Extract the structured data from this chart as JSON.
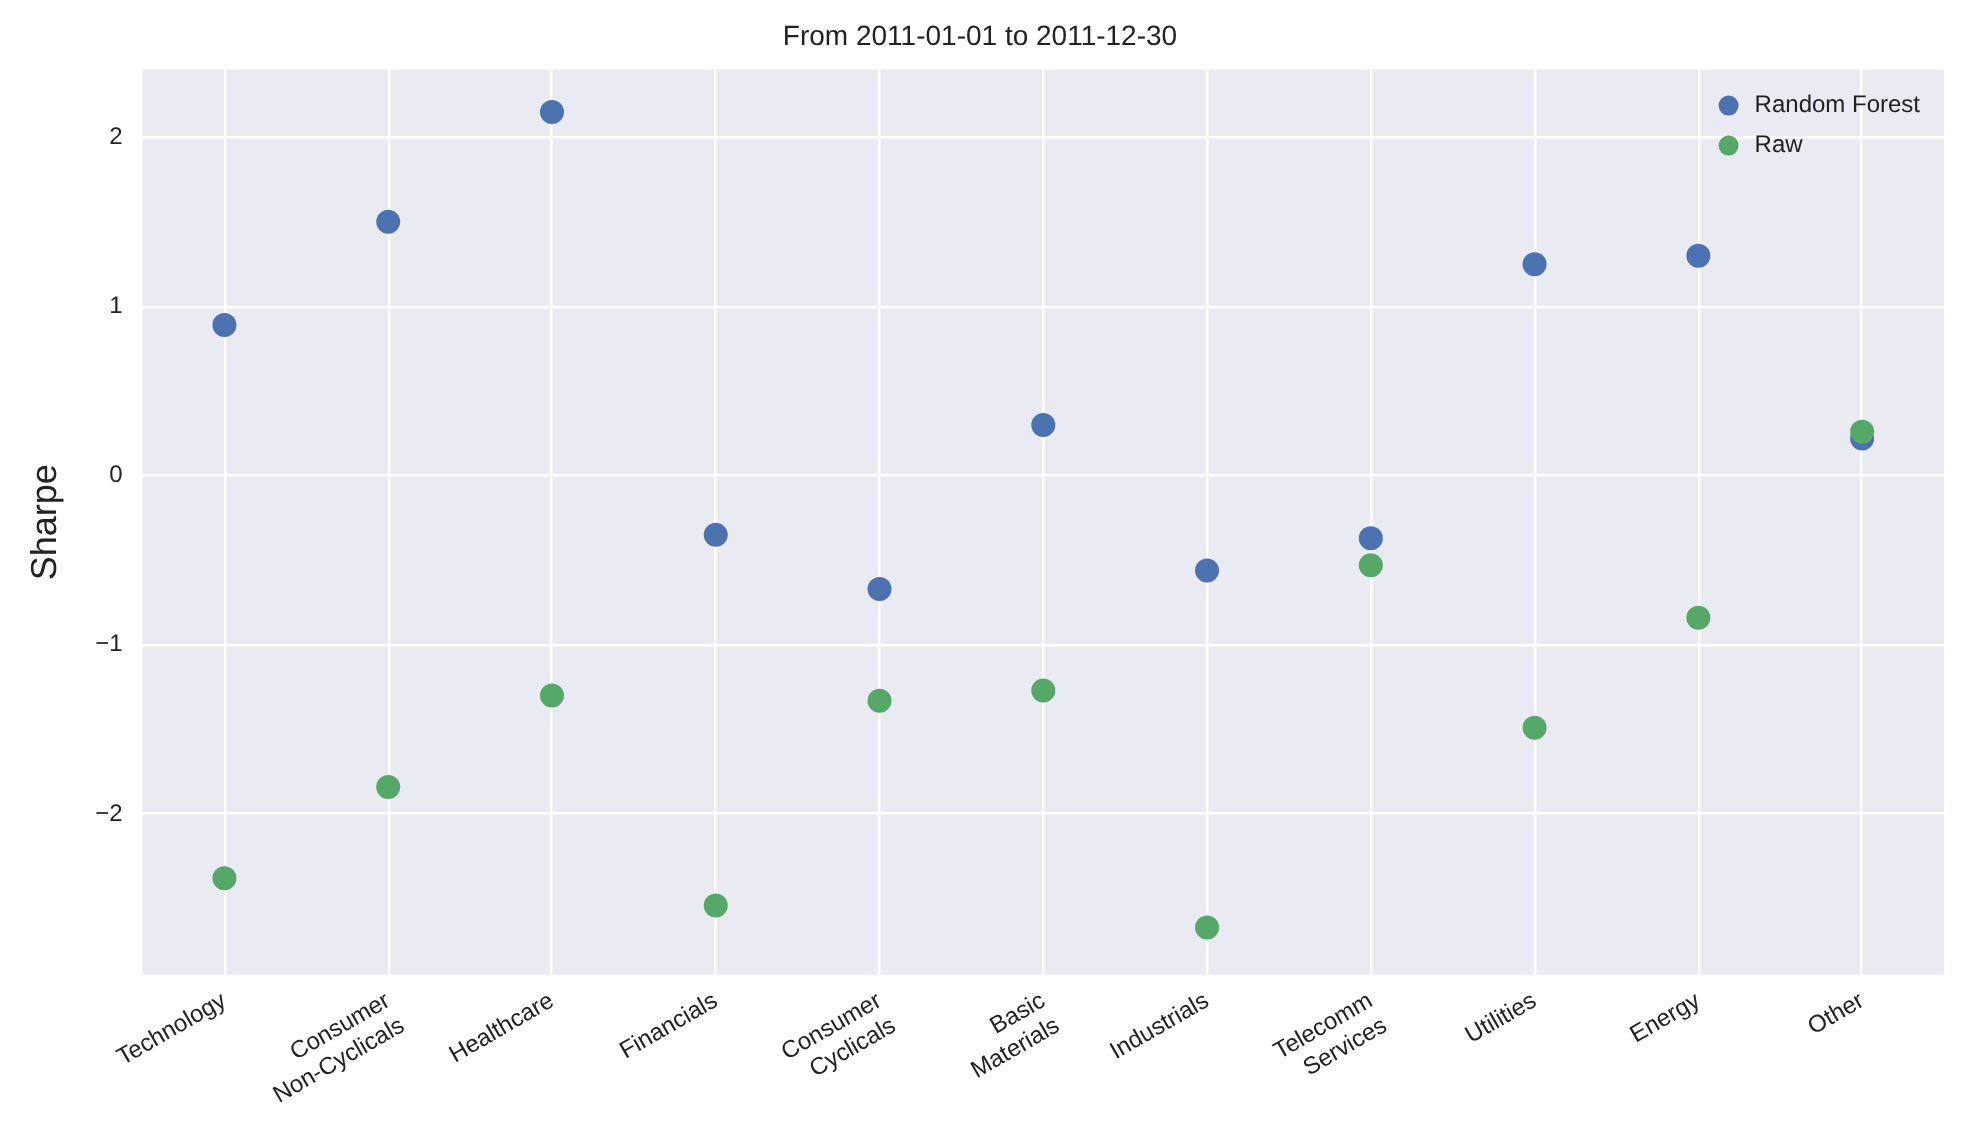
{
  "chart_data": {
    "type": "scatter",
    "title": "From 2011-01-01 to 2011-12-30",
    "ylabel": "Sharpe",
    "categories": [
      "Technology",
      "Consumer\nNon-Cyclicals",
      "Healthcare",
      "Financials",
      "Consumer\nCyclicals",
      "Basic\nMaterials",
      "Industrials",
      "Telecomm\nServices",
      "Utilities",
      "Energy",
      "Other"
    ],
    "series": [
      {
        "name": "Random Forest",
        "color": "#4c72b0",
        "values": [
          0.89,
          1.5,
          2.15,
          -0.35,
          -0.67,
          0.3,
          -0.56,
          -0.37,
          1.25,
          1.3,
          0.22
        ]
      },
      {
        "name": "Raw",
        "color": "#55a868",
        "values": [
          -2.38,
          -1.84,
          -1.3,
          -2.54,
          -1.33,
          -1.27,
          -2.67,
          -0.53,
          -1.49,
          -0.84,
          0.26
        ]
      }
    ],
    "ylim": [
      -2.95,
      2.4
    ],
    "yticks": [
      -2,
      -1,
      0,
      1,
      2
    ],
    "grid": true,
    "legend": "top right",
    "marker": "circle"
  }
}
